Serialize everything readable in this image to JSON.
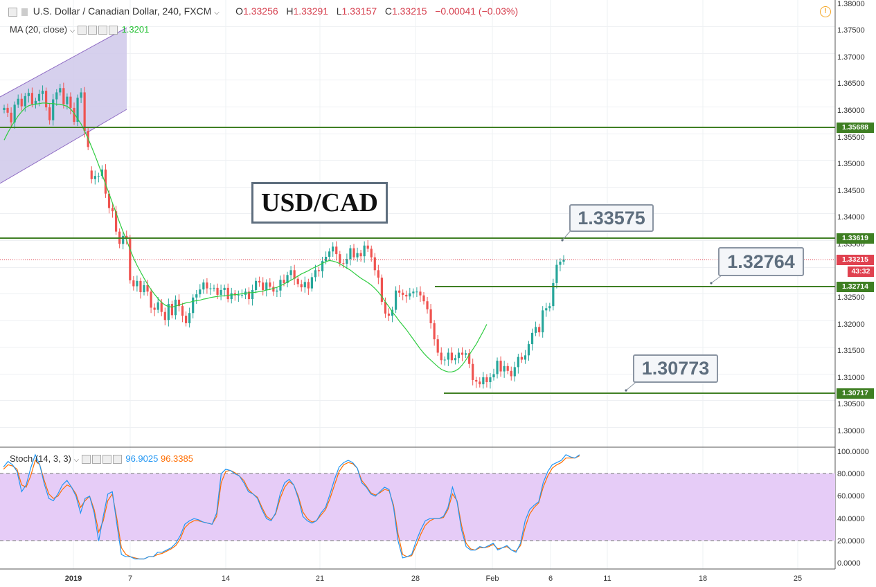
{
  "header": {
    "symbol": "U.S. Dollar / Canadian Dollar, 240, FXCM",
    "open_label": "O",
    "open": "1.33256",
    "high_label": "H",
    "high": "1.33291",
    "low_label": "L",
    "low": "1.33157",
    "close_label": "C",
    "close": "1.33215",
    "change": "−0.00041 (−0.03%)",
    "ma_label": "MA (20, close)",
    "ma_value": "1.3201",
    "stoch_label": "Stoch (14, 3, 3)",
    "stoch_k": "96.9025",
    "stoch_d": "96.3385"
  },
  "annotations": {
    "pair_title": "USD/CAD",
    "callout_1": "1.33575",
    "callout_2": "1.32764",
    "callout_3": "1.30773"
  },
  "price_tags": {
    "level_1": "1.35688",
    "level_2": "1.33619",
    "current": "1.33215",
    "countdown": "43:32",
    "level_3": "1.32714",
    "level_4": "1.30717"
  },
  "colors": {
    "up": "#26a69a",
    "down": "#ef5350",
    "ma": "#2ecc40",
    "level": "#3f7f23",
    "stoch_k": "#2196f3",
    "stoch_d": "#ff6d00",
    "stoch_band": "#e6ccf7",
    "channel": "#cfc8ea"
  },
  "chart_data": [
    {
      "type": "candlestick",
      "title": "U.S. Dollar / Canadian Dollar, 240, FXCM",
      "ylim": [
        1.2975,
        1.3805
      ],
      "yticks": [
        "1.38000",
        "1.37500",
        "1.37000",
        "1.36500",
        "1.36000",
        "1.35500",
        "1.35000",
        "1.34500",
        "1.34000",
        "1.33500",
        "1.32500",
        "1.32000",
        "1.31500",
        "1.31000",
        "1.30500",
        "1.30000"
      ],
      "xticks": [
        "2019",
        "7",
        "14",
        "21",
        "28",
        "Feb",
        "6",
        "11",
        "18",
        "25"
      ],
      "close": [
        1.3605,
        1.3596,
        1.3578,
        1.3611,
        1.3622,
        1.3608,
        1.3627,
        1.3633,
        1.3612,
        1.3618,
        1.3631,
        1.3637,
        1.3606,
        1.3582,
        1.3621,
        1.3634,
        1.3642,
        1.3612,
        1.3626,
        1.3605,
        1.3579,
        1.3624,
        1.3634,
        1.3562,
        1.3532,
        1.3472,
        1.3478,
        1.3478,
        1.349,
        1.3445,
        1.3418,
        1.3412,
        1.3374,
        1.3351,
        1.3366,
        1.3362,
        1.3283,
        1.3272,
        1.3282,
        1.3261,
        1.3274,
        1.3262,
        1.3232,
        1.3228,
        1.3242,
        1.3224,
        1.3209,
        1.3239,
        1.3218,
        1.3247,
        1.3235,
        1.3217,
        1.3203,
        1.3222,
        1.3251,
        1.3257,
        1.3266,
        1.3279,
        1.3268,
        1.3268,
        1.3269,
        1.3256,
        1.3265,
        1.3269,
        1.3248,
        1.3259,
        1.3255,
        1.3256,
        1.3256,
        1.3262,
        1.3248,
        1.3265,
        1.3282,
        1.3279,
        1.3265,
        1.3279,
        1.3271,
        1.3262,
        1.3264,
        1.3284,
        1.3278,
        1.3293,
        1.3302,
        1.3286,
        1.3276,
        1.327,
        1.328,
        1.3268,
        1.3289,
        1.3302,
        1.33,
        1.3319,
        1.3327,
        1.3337,
        1.3346,
        1.3332,
        1.3315,
        1.3314,
        1.3323,
        1.3343,
        1.3326,
        1.3334,
        1.3328,
        1.3348,
        1.3342,
        1.3326,
        1.3302,
        1.3288,
        1.3243,
        1.3221,
        1.3217,
        1.3228,
        1.3264,
        1.326,
        1.3256,
        1.3253,
        1.3259,
        1.3262,
        1.3262,
        1.3255,
        1.3244,
        1.3229,
        1.3203,
        1.3173,
        1.3148,
        1.3134,
        1.3135,
        1.3148,
        1.3134,
        1.3138,
        1.3148,
        1.3144,
        1.3147,
        1.3127,
        1.3097,
        1.3094,
        1.3089,
        1.3102,
        1.3093,
        1.3102,
        1.3108,
        1.3133,
        1.3113,
        1.3123,
        1.3114,
        1.3104,
        1.3121,
        1.314,
        1.3135,
        1.3143,
        1.3164,
        1.3185,
        1.3196,
        1.3186,
        1.3227,
        1.3231,
        1.3235,
        1.3278,
        1.3312,
        1.3318,
        1.3322
      ],
      "open": [
        1.3601,
        1.3605,
        1.3596,
        1.3578,
        1.3611,
        1.3622,
        1.3608,
        1.3627,
        1.3633,
        1.3612,
        1.3618,
        1.3631,
        1.3637,
        1.3606,
        1.3582,
        1.3621,
        1.3634,
        1.3642,
        1.3612,
        1.3626,
        1.3605,
        1.3579,
        1.3624,
        1.3634,
        1.3562,
        1.3488,
        1.3472,
        1.3478,
        1.3478,
        1.349,
        1.3445,
        1.3418,
        1.3412,
        1.3374,
        1.3351,
        1.3366,
        1.3362,
        1.3283,
        1.3272,
        1.3282,
        1.3261,
        1.3274,
        1.3262,
        1.3232,
        1.3228,
        1.3242,
        1.3224,
        1.3209,
        1.3239,
        1.3218,
        1.3247,
        1.3235,
        1.3217,
        1.3203,
        1.3222,
        1.3251,
        1.3257,
        1.3266,
        1.3279,
        1.3268,
        1.3268,
        1.3269,
        1.3256,
        1.3265,
        1.3269,
        1.3248,
        1.3259,
        1.3255,
        1.3256,
        1.3256,
        1.3262,
        1.3248,
        1.3265,
        1.3282,
        1.3279,
        1.3265,
        1.3279,
        1.3271,
        1.3262,
        1.3264,
        1.3284,
        1.3278,
        1.3293,
        1.3302,
        1.3286,
        1.3276,
        1.327,
        1.328,
        1.3268,
        1.3289,
        1.3302,
        1.33,
        1.3319,
        1.3327,
        1.3337,
        1.3346,
        1.3332,
        1.3315,
        1.3314,
        1.3323,
        1.3343,
        1.3326,
        1.3334,
        1.3328,
        1.3348,
        1.3342,
        1.3326,
        1.3302,
        1.3288,
        1.3243,
        1.3221,
        1.3217,
        1.3228,
        1.3264,
        1.326,
        1.3256,
        1.3253,
        1.3259,
        1.3262,
        1.3262,
        1.3255,
        1.3244,
        1.3229,
        1.3203,
        1.3173,
        1.3148,
        1.3134,
        1.3135,
        1.3148,
        1.3134,
        1.3138,
        1.3148,
        1.3144,
        1.3147,
        1.3127,
        1.3097,
        1.3094,
        1.3089,
        1.3102,
        1.3093,
        1.3102,
        1.3108,
        1.3133,
        1.3113,
        1.3123,
        1.3114,
        1.3104,
        1.3121,
        1.314,
        1.3135,
        1.3143,
        1.3164,
        1.3185,
        1.3196,
        1.3186,
        1.3227,
        1.3231,
        1.3235,
        1.3278,
        1.3312,
        1.3318
      ],
      "ma": [
        1.3545,
        1.3558,
        1.357,
        1.358,
        1.359,
        1.3598,
        1.3605,
        1.3609,
        1.3611,
        1.3612,
        1.3613,
        1.3614,
        1.3614,
        1.3613,
        1.3613,
        1.3612,
        1.3612,
        1.361,
        1.3608,
        1.3603,
        1.3595,
        1.3585,
        1.3575,
        1.3562,
        1.3548,
        1.3532,
        1.3516,
        1.3499,
        1.3481,
        1.3463,
        1.3445,
        1.3427,
        1.3409,
        1.3391,
        1.3374,
        1.3358,
        1.3341,
        1.3325,
        1.3311,
        1.3299,
        1.3287,
        1.3276,
        1.3266,
        1.3257,
        1.3249,
        1.3242,
        1.3237,
        1.3234,
        1.3233,
        1.3235,
        1.3237,
        1.3239,
        1.3241,
        1.3242,
        1.3244,
        1.3245,
        1.3246,
        1.3248,
        1.3249,
        1.3251,
        1.3252,
        1.3253,
        1.3254,
        1.3254,
        1.3255,
        1.3256,
        1.3256,
        1.3257,
        1.3258,
        1.3259,
        1.326,
        1.326,
        1.3261,
        1.3262,
        1.3263,
        1.3265,
        1.3266,
        1.3268,
        1.327,
        1.3273,
        1.3276,
        1.328,
        1.3283,
        1.3287,
        1.3291,
        1.3295,
        1.3298,
        1.3301,
        1.3305,
        1.3308,
        1.3311,
        1.3315,
        1.3318,
        1.332,
        1.3319,
        1.3317,
        1.3314,
        1.331,
        1.3306,
        1.3302,
        1.3297,
        1.3292,
        1.3287,
        1.3283,
        1.3279,
        1.3274,
        1.3268,
        1.3261,
        1.3253,
        1.3243,
        1.3234,
        1.3224,
        1.3216,
        1.3207,
        1.3199,
        1.3191,
        1.3182,
        1.3173,
        1.3164,
        1.3155,
        1.3147,
        1.314,
        1.3134,
        1.3128,
        1.3122,
        1.3117,
        1.3114,
        1.3112,
        1.3112,
        1.3114,
        1.3118,
        1.3125,
        1.3134,
        1.3144,
        1.3154,
        1.3164,
        1.3176,
        1.3188,
        1.3201
      ]
    },
    {
      "type": "line",
      "title": "Stoch (14, 3, 3)",
      "ylim": [
        0,
        100
      ],
      "yticks": [
        "100.0000",
        "80.0000",
        "60.0000",
        "40.0000",
        "20.0000",
        "0.0000"
      ],
      "band": [
        20,
        80
      ],
      "series": [
        {
          "name": "%K",
          "values": [
            86,
            91,
            88,
            82,
            64,
            70,
            85,
            97,
            88,
            71,
            58,
            56,
            62,
            70,
            74,
            68,
            60,
            45,
            58,
            60,
            45,
            20,
            42,
            62,
            64,
            35,
            8,
            6,
            6,
            4,
            4,
            4,
            6,
            6,
            10,
            10,
            12,
            14,
            18,
            25,
            35,
            38,
            40,
            39,
            37,
            36,
            35,
            45,
            80,
            84,
            83,
            80,
            78,
            72,
            64,
            62,
            58,
            48,
            40,
            38,
            45,
            62,
            72,
            75,
            70,
            58,
            42,
            38,
            36,
            38,
            45,
            50,
            62,
            75,
            86,
            90,
            92,
            90,
            85,
            72,
            68,
            62,
            60,
            64,
            68,
            66,
            50,
            20,
            5,
            6,
            8,
            20,
            30,
            38,
            40,
            40,
            40,
            42,
            50,
            68,
            55,
            30,
            15,
            12,
            12,
            15,
            14,
            16,
            18,
            12,
            14,
            16,
            12,
            10,
            18,
            38,
            48,
            52,
            55,
            72,
            82,
            88,
            90,
            92,
            97,
            95,
            94,
            97
          ]
        },
        {
          "name": "%D",
          "values": [
            84,
            88,
            87,
            84,
            70,
            68,
            78,
            92,
            88,
            74,
            62,
            58,
            60,
            66,
            70,
            68,
            62,
            50,
            56,
            60,
            48,
            28,
            38,
            56,
            62,
            40,
            14,
            8,
            6,
            5,
            4,
            4,
            6,
            6,
            8,
            9,
            11,
            13,
            16,
            22,
            32,
            36,
            38,
            38,
            37,
            36,
            35,
            42,
            72,
            82,
            83,
            81,
            78,
            74,
            66,
            62,
            59,
            50,
            42,
            39,
            44,
            58,
            68,
            73,
            70,
            60,
            46,
            40,
            37,
            38,
            43,
            48,
            58,
            70,
            82,
            88,
            90,
            89,
            85,
            74,
            69,
            63,
            61,
            63,
            66,
            65,
            52,
            26,
            8,
            6,
            7,
            16,
            26,
            34,
            38,
            40,
            40,
            41,
            48,
            62,
            56,
            34,
            18,
            13,
            12,
            14,
            14,
            15,
            17,
            13,
            14,
            15,
            12,
            11,
            16,
            32,
            44,
            50,
            54,
            68,
            78,
            85,
            88,
            90,
            94,
            94,
            94,
            96
          ]
        }
      ]
    }
  ]
}
